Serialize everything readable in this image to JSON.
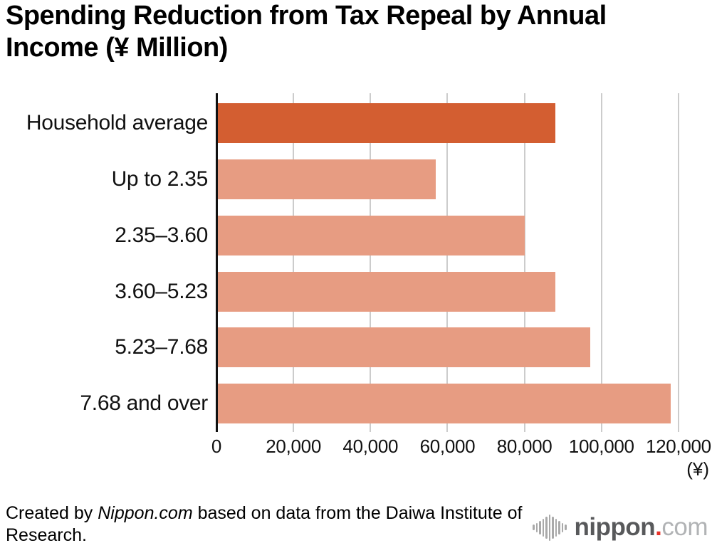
{
  "chart_data": {
    "type": "bar",
    "orientation": "horizontal",
    "title": "Spending Reduction from Tax Repeal by Annual Income (¥ Million)",
    "categories": [
      "Household average",
      "Up to 2.35",
      "2.35–3.60",
      "3.60–5.23",
      "5.23–7.68",
      "7.68 and over"
    ],
    "values": [
      88000,
      57000,
      80000,
      88000,
      97000,
      118000
    ],
    "highlight_index": 0,
    "xlim": [
      0,
      120000
    ],
    "x_ticks": [
      0,
      20000,
      40000,
      60000,
      80000,
      100000,
      120000
    ],
    "x_tick_labels": [
      "0",
      "20,000",
      "40,000",
      "60,000",
      "80,000",
      "100,000",
      "120,000"
    ],
    "xlabel": "(¥)",
    "ylabel": "",
    "grid": true,
    "legend": "none",
    "colors": {
      "highlight": "#d35e31",
      "normal": "#e79c82",
      "gridline": "#cccccc",
      "axis": "#111111"
    }
  },
  "footer": {
    "prefix": "Created by ",
    "brand": "Nippon.com",
    "suffix": " based on data from the Daiwa Institute of Research."
  },
  "logo": {
    "brand_bold": "nippon",
    "dot": ".",
    "brand_light": "com"
  }
}
